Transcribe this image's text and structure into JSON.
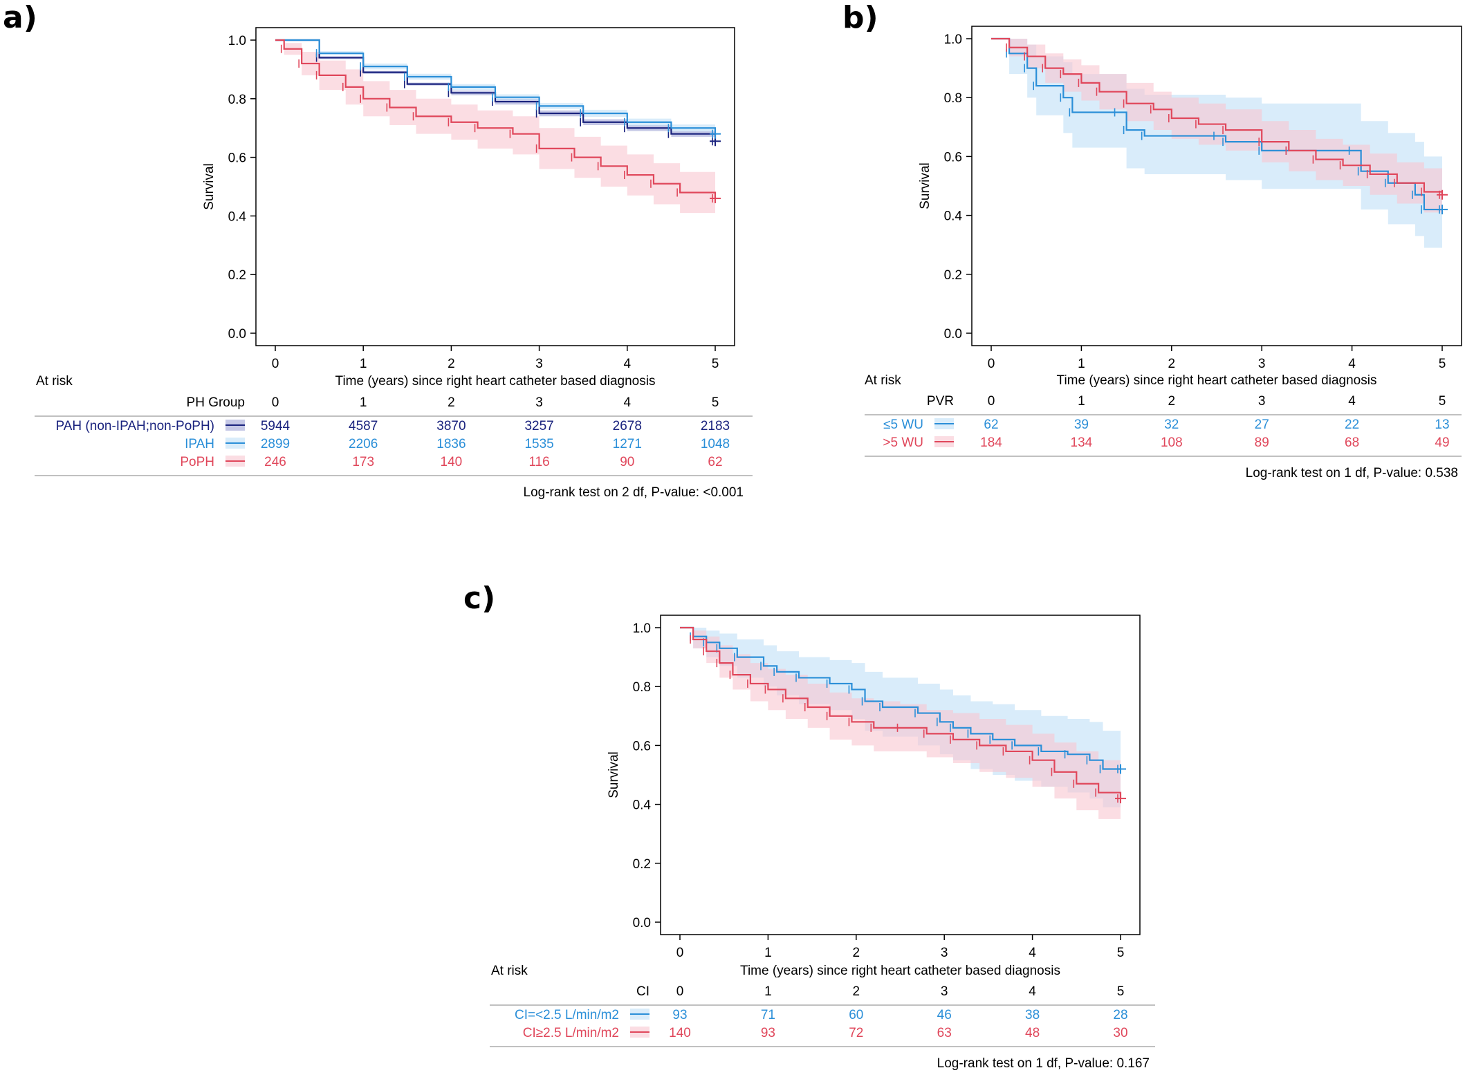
{
  "colors": {
    "navy": "#1a237e",
    "blue": "#2b8fd8",
    "red": "#e0475b",
    "blue_band": "#bfe0f7",
    "red_band": "#f8c6d0",
    "navy_band": "#9ea3d6",
    "axis": "#000000",
    "rule": "#9a9a9a"
  },
  "chart_data": [
    {
      "panel_label": "a)",
      "type": "line",
      "subtype": "kaplan-meier",
      "ylabel": "Survival",
      "xlabel": "Time (years) since right heart catheter based diagnosis",
      "xlim": [
        0,
        5
      ],
      "ylim": [
        0,
        1.0
      ],
      "x_ticks": [
        "0",
        "1",
        "2",
        "3",
        "4",
        "5"
      ],
      "y_ticks": [
        "0.0",
        "0.2",
        "0.4",
        "0.6",
        "0.8",
        "1.0"
      ],
      "at_risk_label": "At risk",
      "strata_title": "PH Group",
      "pvalue": "Log-rank test on 2 df, P-value: <0.001",
      "series": [
        {
          "name": "PAH (non-IPAH;non-PoPH)",
          "color": "#1a237e",
          "x": [
            0,
            0.5,
            1,
            1.5,
            2,
            2.5,
            3,
            3.5,
            4,
            4.5,
            5
          ],
          "y": [
            1.0,
            0.94,
            0.89,
            0.85,
            0.82,
            0.79,
            0.75,
            0.72,
            0.7,
            0.68,
            0.655
          ],
          "band_lower": [
            1.0,
            0.935,
            0.885,
            0.845,
            0.812,
            0.78,
            0.74,
            0.71,
            0.69,
            0.67,
            0.645
          ],
          "band_upper": [
            1.0,
            0.945,
            0.895,
            0.855,
            0.828,
            0.8,
            0.76,
            0.73,
            0.71,
            0.69,
            0.665
          ],
          "at_risk": [
            "5944",
            "4587",
            "3870",
            "3257",
            "2678",
            "2183"
          ]
        },
        {
          "name": "IPAH",
          "color": "#2b8fd8",
          "x": [
            0,
            0.5,
            1,
            1.5,
            2,
            2.5,
            3,
            3.5,
            4,
            4.5,
            5
          ],
          "y": [
            1.0,
            0.955,
            0.91,
            0.875,
            0.84,
            0.805,
            0.775,
            0.75,
            0.72,
            0.7,
            0.68
          ],
          "band_lower": [
            1.0,
            0.948,
            0.9,
            0.865,
            0.83,
            0.795,
            0.765,
            0.738,
            0.708,
            0.688,
            0.665
          ],
          "band_upper": [
            1.0,
            0.962,
            0.92,
            0.885,
            0.85,
            0.815,
            0.785,
            0.762,
            0.732,
            0.712,
            0.695
          ],
          "at_risk": [
            "2899",
            "2206",
            "1836",
            "1535",
            "1271",
            "1048"
          ]
        },
        {
          "name": "PoPH",
          "color": "#e0475b",
          "x": [
            0,
            0.1,
            0.3,
            0.5,
            0.8,
            1.0,
            1.3,
            1.6,
            2.0,
            2.3,
            2.7,
            3.0,
            3.4,
            3.7,
            4.0,
            4.3,
            4.6,
            5.0
          ],
          "y": [
            1.0,
            0.97,
            0.92,
            0.88,
            0.84,
            0.8,
            0.77,
            0.74,
            0.72,
            0.7,
            0.68,
            0.63,
            0.6,
            0.57,
            0.54,
            0.51,
            0.48,
            0.46
          ],
          "band_lower": [
            1.0,
            0.95,
            0.88,
            0.83,
            0.78,
            0.74,
            0.71,
            0.68,
            0.66,
            0.63,
            0.61,
            0.56,
            0.53,
            0.5,
            0.47,
            0.44,
            0.41,
            0.39
          ],
          "band_upper": [
            1.0,
            0.99,
            0.96,
            0.93,
            0.9,
            0.86,
            0.83,
            0.8,
            0.78,
            0.76,
            0.74,
            0.7,
            0.67,
            0.64,
            0.61,
            0.58,
            0.55,
            0.53
          ],
          "at_risk": [
            "246",
            "173",
            "140",
            "116",
            "90",
            "62"
          ]
        }
      ]
    },
    {
      "panel_label": "b)",
      "type": "line",
      "subtype": "kaplan-meier",
      "ylabel": "Survival",
      "xlabel": "Time (years) since right heart catheter based diagnosis",
      "xlim": [
        0,
        5
      ],
      "ylim": [
        0,
        1.0
      ],
      "x_ticks": [
        "0",
        "1",
        "2",
        "3",
        "4",
        "5"
      ],
      "y_ticks": [
        "0.0",
        "0.2",
        "0.4",
        "0.6",
        "0.8",
        "1.0"
      ],
      "at_risk_label": "At risk",
      "strata_title": "PVR",
      "pvalue": "Log-rank test on 1 df, P-value: 0.538",
      "series": [
        {
          "name": "≤5 WU",
          "color": "#2b8fd8",
          "x": [
            0,
            0.2,
            0.4,
            0.5,
            0.8,
            0.9,
            1.4,
            1.5,
            1.7,
            2.5,
            2.6,
            3.0,
            3.3,
            4.0,
            4.1,
            4.4,
            4.7,
            4.8,
            5.0
          ],
          "y": [
            1.0,
            0.95,
            0.9,
            0.84,
            0.8,
            0.75,
            0.75,
            0.69,
            0.67,
            0.67,
            0.65,
            0.62,
            0.62,
            0.62,
            0.55,
            0.51,
            0.47,
            0.42,
            0.42
          ],
          "band_lower": [
            1.0,
            0.88,
            0.8,
            0.74,
            0.68,
            0.63,
            0.63,
            0.56,
            0.54,
            0.54,
            0.52,
            0.49,
            0.49,
            0.49,
            0.42,
            0.37,
            0.33,
            0.29,
            0.29
          ],
          "band_upper": [
            1.0,
            1.0,
            0.98,
            0.94,
            0.92,
            0.88,
            0.88,
            0.83,
            0.81,
            0.81,
            0.8,
            0.78,
            0.78,
            0.78,
            0.72,
            0.68,
            0.65,
            0.6,
            0.6
          ],
          "at_risk": [
            "62",
            "39",
            "32",
            "27",
            "22",
            "13"
          ]
        },
        {
          "name": ">5 WU",
          "color": "#e0475b",
          "x": [
            0,
            0.2,
            0.4,
            0.6,
            0.8,
            1.0,
            1.2,
            1.5,
            1.8,
            2.0,
            2.3,
            2.6,
            3.0,
            3.3,
            3.6,
            3.9,
            4.2,
            4.5,
            4.8,
            5.0
          ],
          "y": [
            1.0,
            0.97,
            0.94,
            0.9,
            0.88,
            0.85,
            0.82,
            0.78,
            0.76,
            0.73,
            0.71,
            0.69,
            0.65,
            0.62,
            0.59,
            0.57,
            0.54,
            0.51,
            0.48,
            0.47
          ],
          "band_lower": [
            1.0,
            0.94,
            0.9,
            0.85,
            0.82,
            0.79,
            0.76,
            0.72,
            0.69,
            0.66,
            0.64,
            0.62,
            0.58,
            0.55,
            0.52,
            0.5,
            0.47,
            0.44,
            0.41,
            0.39
          ],
          "band_upper": [
            1.0,
            1.0,
            0.98,
            0.95,
            0.93,
            0.91,
            0.88,
            0.85,
            0.82,
            0.8,
            0.78,
            0.76,
            0.72,
            0.69,
            0.66,
            0.64,
            0.61,
            0.58,
            0.56,
            0.55
          ],
          "at_risk": [
            "184",
            "134",
            "108",
            "89",
            "68",
            "49"
          ]
        }
      ]
    },
    {
      "panel_label": "c)",
      "type": "line",
      "subtype": "kaplan-meier",
      "ylabel": "Survival",
      "xlabel": "Time (years) since right heart catheter based diagnosis",
      "xlim": [
        0,
        5
      ],
      "ylim": [
        0,
        1.0
      ],
      "x_ticks": [
        "0",
        "1",
        "2",
        "3",
        "4",
        "5"
      ],
      "y_ticks": [
        "0.0",
        "0.2",
        "0.4",
        "0.6",
        "0.8",
        "1.0"
      ],
      "at_risk_label": "At risk",
      "strata_title": "CI",
      "pvalue": "Log-rank test on 1 df, P-value: 0.167",
      "series": [
        {
          "name": "CI=<2.5 L/min/m2",
          "color": "#2b8fd8",
          "x": [
            0,
            0.15,
            0.3,
            0.45,
            0.65,
            0.95,
            1.1,
            1.35,
            1.7,
            1.95,
            2.1,
            2.3,
            2.7,
            2.95,
            3.1,
            3.3,
            3.55,
            3.8,
            4.1,
            4.4,
            4.65,
            4.8,
            5.0
          ],
          "y": [
            1.0,
            0.97,
            0.95,
            0.93,
            0.9,
            0.87,
            0.85,
            0.83,
            0.81,
            0.79,
            0.75,
            0.73,
            0.71,
            0.68,
            0.66,
            0.64,
            0.62,
            0.6,
            0.58,
            0.57,
            0.55,
            0.52,
            0.52
          ],
          "band_lower": [
            1.0,
            0.93,
            0.9,
            0.87,
            0.83,
            0.8,
            0.77,
            0.74,
            0.72,
            0.69,
            0.65,
            0.63,
            0.6,
            0.57,
            0.55,
            0.52,
            0.5,
            0.48,
            0.46,
            0.44,
            0.42,
            0.39,
            0.39
          ],
          "band_upper": [
            1.0,
            1.0,
            0.99,
            0.98,
            0.96,
            0.94,
            0.92,
            0.9,
            0.89,
            0.88,
            0.85,
            0.83,
            0.81,
            0.79,
            0.77,
            0.75,
            0.74,
            0.72,
            0.7,
            0.69,
            0.68,
            0.65,
            0.65
          ],
          "at_risk": [
            "93",
            "71",
            "60",
            "46",
            "38",
            "28"
          ]
        },
        {
          "name": "CI≥2.5 L/min/m2",
          "color": "#e0475b",
          "x": [
            0,
            0.15,
            0.3,
            0.45,
            0.6,
            0.8,
            1.0,
            1.2,
            1.45,
            1.7,
            1.95,
            2.2,
            2.5,
            2.8,
            3.1,
            3.4,
            3.7,
            4.0,
            4.25,
            4.5,
            4.75,
            5.0
          ],
          "y": [
            1.0,
            0.96,
            0.92,
            0.88,
            0.84,
            0.81,
            0.79,
            0.76,
            0.73,
            0.7,
            0.68,
            0.66,
            0.66,
            0.64,
            0.62,
            0.6,
            0.58,
            0.55,
            0.51,
            0.47,
            0.44,
            0.42
          ],
          "band_lower": [
            1.0,
            0.93,
            0.88,
            0.83,
            0.79,
            0.75,
            0.72,
            0.69,
            0.66,
            0.62,
            0.6,
            0.58,
            0.58,
            0.56,
            0.54,
            0.51,
            0.49,
            0.46,
            0.42,
            0.38,
            0.35,
            0.33
          ],
          "band_upper": [
            1.0,
            0.99,
            0.97,
            0.94,
            0.91,
            0.88,
            0.86,
            0.84,
            0.81,
            0.78,
            0.76,
            0.75,
            0.74,
            0.72,
            0.71,
            0.69,
            0.67,
            0.64,
            0.61,
            0.58,
            0.55,
            0.53
          ],
          "at_risk": [
            "140",
            "93",
            "72",
            "63",
            "48",
            "30"
          ]
        }
      ]
    }
  ]
}
